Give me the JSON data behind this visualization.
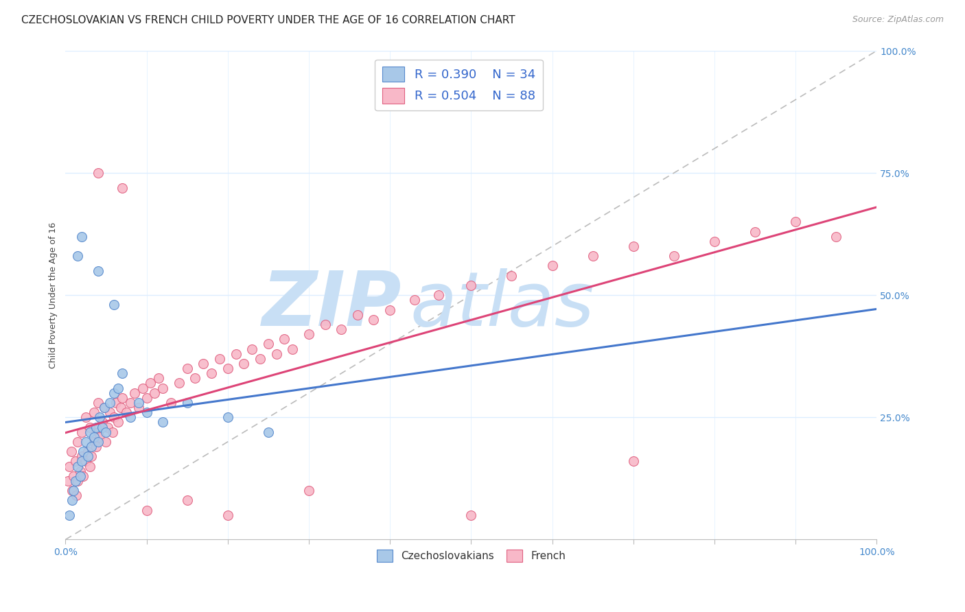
{
  "title": "CZECHOSLOVAKIAN VS FRENCH CHILD POVERTY UNDER THE AGE OF 16 CORRELATION CHART",
  "source": "Source: ZipAtlas.com",
  "ylabel": "Child Poverty Under the Age of 16",
  "title_fontsize": 11,
  "source_fontsize": 9,
  "label_fontsize": 9,
  "watermark_top": "ZIP",
  "watermark_bot": "atlas",
  "watermark_color": "#c8dff5",
  "blue_scatter_color": "#a8c8e8",
  "blue_edge_color": "#5588cc",
  "pink_scatter_color": "#f8b8c8",
  "pink_edge_color": "#e06080",
  "blue_line_color": "#4477cc",
  "pink_line_color": "#dd4477",
  "tick_label_color": "#4488cc",
  "legend_R_color": "#3366cc",
  "legend_label1": "Czechoslovakians",
  "legend_label2": "French",
  "bg_color": "#ffffff",
  "grid_color": "#ddeeff",
  "czecho_x": [
    0.005,
    0.008,
    0.01,
    0.012,
    0.015,
    0.018,
    0.02,
    0.022,
    0.025,
    0.028,
    0.03,
    0.032,
    0.035,
    0.038,
    0.04,
    0.042,
    0.045,
    0.048,
    0.05,
    0.055,
    0.06,
    0.065,
    0.07,
    0.08,
    0.09,
    0.1,
    0.12,
    0.15,
    0.2,
    0.25,
    0.02,
    0.015,
    0.04,
    0.06
  ],
  "czecho_y": [
    0.05,
    0.08,
    0.1,
    0.12,
    0.15,
    0.13,
    0.16,
    0.18,
    0.2,
    0.17,
    0.22,
    0.19,
    0.21,
    0.23,
    0.2,
    0.25,
    0.23,
    0.27,
    0.22,
    0.28,
    0.3,
    0.31,
    0.34,
    0.25,
    0.28,
    0.26,
    0.24,
    0.28,
    0.25,
    0.22,
    0.62,
    0.58,
    0.55,
    0.48
  ],
  "french_x": [
    0.003,
    0.005,
    0.007,
    0.008,
    0.01,
    0.012,
    0.013,
    0.015,
    0.015,
    0.018,
    0.02,
    0.02,
    0.022,
    0.025,
    0.025,
    0.028,
    0.03,
    0.03,
    0.032,
    0.035,
    0.035,
    0.038,
    0.04,
    0.04,
    0.042,
    0.045,
    0.048,
    0.05,
    0.052,
    0.055,
    0.058,
    0.06,
    0.062,
    0.065,
    0.068,
    0.07,
    0.075,
    0.08,
    0.085,
    0.09,
    0.095,
    0.1,
    0.105,
    0.11,
    0.115,
    0.12,
    0.13,
    0.14,
    0.15,
    0.16,
    0.17,
    0.18,
    0.19,
    0.2,
    0.21,
    0.22,
    0.23,
    0.24,
    0.25,
    0.26,
    0.27,
    0.28,
    0.3,
    0.32,
    0.34,
    0.36,
    0.38,
    0.4,
    0.43,
    0.46,
    0.5,
    0.55,
    0.6,
    0.65,
    0.7,
    0.75,
    0.8,
    0.85,
    0.9,
    0.95,
    0.04,
    0.07,
    0.1,
    0.15,
    0.2,
    0.3,
    0.5,
    0.7
  ],
  "french_y": [
    0.12,
    0.15,
    0.18,
    0.1,
    0.13,
    0.16,
    0.09,
    0.12,
    0.2,
    0.14,
    0.17,
    0.22,
    0.13,
    0.16,
    0.25,
    0.18,
    0.15,
    0.23,
    0.17,
    0.2,
    0.26,
    0.19,
    0.22,
    0.28,
    0.21,
    0.24,
    0.27,
    0.2,
    0.23,
    0.26,
    0.22,
    0.25,
    0.28,
    0.24,
    0.27,
    0.29,
    0.26,
    0.28,
    0.3,
    0.27,
    0.31,
    0.29,
    0.32,
    0.3,
    0.33,
    0.31,
    0.28,
    0.32,
    0.35,
    0.33,
    0.36,
    0.34,
    0.37,
    0.35,
    0.38,
    0.36,
    0.39,
    0.37,
    0.4,
    0.38,
    0.41,
    0.39,
    0.42,
    0.44,
    0.43,
    0.46,
    0.45,
    0.47,
    0.49,
    0.5,
    0.52,
    0.54,
    0.56,
    0.58,
    0.6,
    0.58,
    0.61,
    0.63,
    0.65,
    0.62,
    0.75,
    0.72,
    0.06,
    0.08,
    0.05,
    0.1,
    0.05,
    0.16
  ],
  "xlim": [
    0.0,
    1.0
  ],
  "ylim": [
    0.0,
    1.0
  ]
}
